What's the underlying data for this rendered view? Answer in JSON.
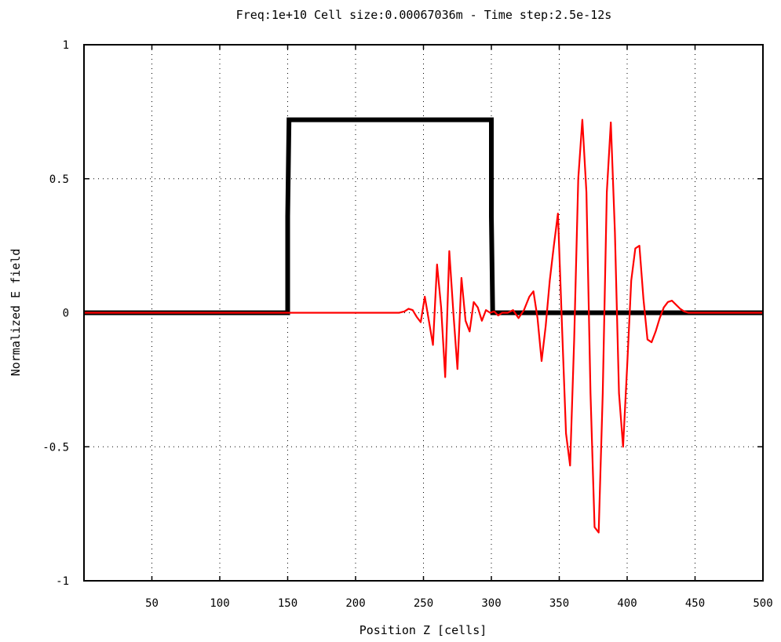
{
  "chart_data": {
    "type": "line",
    "title": "Freq:1e+10 Cell size:0.00067036m - Time step:2.5e-12s",
    "xlabel": "Position Z [cells]",
    "ylabel": "Normalized E field",
    "xlim": [
      0,
      500
    ],
    "ylim": [
      -1,
      1
    ],
    "grid": true,
    "x_ticks": [
      50,
      100,
      150,
      200,
      250,
      300,
      350,
      400,
      450,
      500
    ],
    "x_tick_labels": [
      "50",
      "100",
      "150",
      "200",
      "250",
      "300",
      "350",
      "400",
      "450",
      "500"
    ],
    "y_ticks": [
      1,
      0.5,
      0,
      -0.5,
      -1
    ],
    "y_tick_labels": [
      "1",
      "0.5",
      "0",
      "-0.5",
      "-1"
    ],
    "series": [
      {
        "color": "#000000",
        "style": "thick",
        "x": [
          0,
          150,
          150,
          151,
          300,
          300,
          301,
          500
        ],
        "y": [
          0,
          0,
          0.36,
          0.72,
          0.72,
          0.36,
          0,
          0
        ]
      },
      {
        "color": "#ff0000",
        "style": "thin",
        "x": [
          0,
          232,
          236,
          239,
          242,
          245,
          248,
          251,
          254,
          257,
          260,
          263,
          266,
          269,
          272,
          275,
          278,
          281,
          284,
          287,
          290,
          293,
          296,
          299,
          302,
          305,
          308,
          312,
          316,
          320,
          324,
          328,
          331,
          334,
          337,
          340,
          343,
          346,
          349,
          352,
          355,
          358,
          361,
          364,
          367,
          370,
          373,
          376,
          379,
          382,
          385,
          388,
          391,
          394,
          397,
          400,
          403,
          406,
          409,
          412,
          415,
          418,
          421,
          424,
          427,
          430,
          433,
          436,
          439,
          442,
          445,
          448,
          452,
          500
        ],
        "y": [
          0,
          0,
          0.005,
          0.015,
          0.01,
          -0.015,
          -0.035,
          0.06,
          -0.03,
          -0.12,
          0.18,
          0.02,
          -0.24,
          0.23,
          0.0,
          -0.21,
          0.13,
          -0.03,
          -0.07,
          0.04,
          0.02,
          -0.03,
          0.01,
          0.0,
          0.005,
          -0.01,
          0.0,
          0.0,
          0.01,
          -0.02,
          0.01,
          0.06,
          0.08,
          -0.02,
          -0.18,
          -0.05,
          0.12,
          0.25,
          0.37,
          -0.05,
          -0.45,
          -0.57,
          -0.1,
          0.5,
          0.72,
          0.45,
          -0.3,
          -0.8,
          -0.82,
          -0.3,
          0.45,
          0.71,
          0.3,
          -0.3,
          -0.5,
          -0.2,
          0.12,
          0.24,
          0.25,
          0.05,
          -0.1,
          -0.11,
          -0.07,
          -0.02,
          0.02,
          0.04,
          0.045,
          0.03,
          0.015,
          0.005,
          0.0,
          0.0,
          0.0,
          0.0
        ]
      }
    ]
  }
}
